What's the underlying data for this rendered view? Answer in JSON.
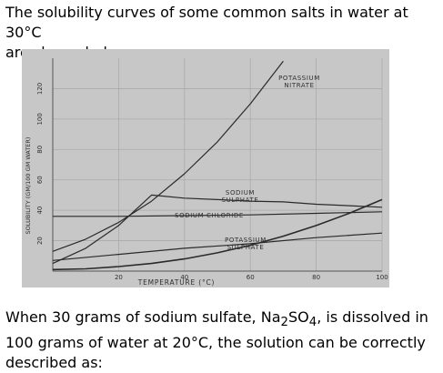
{
  "question": {
    "intro_line1": "The solubility curves of some common salts in water at 30°C",
    "intro_line2": "are shown below:",
    "prompt_pre": "When 30 grams of sodium sulfate, Na",
    "prompt_sub1": "2",
    "prompt_mid": "SO",
    "prompt_sub2": "4",
    "prompt_post": ", is dissolved in 100 grams of water at 20°C, the solution can be correctly described as:"
  },
  "chart_data": {
    "type": "line",
    "xlabel": "TEMPERATURE (°C)",
    "ylabel": "SOLUBILITY (GM/100 GM WATER)",
    "xticks": [
      "20",
      "40",
      "60",
      "80",
      "100"
    ],
    "yticks": [
      "20",
      "40",
      "60",
      "80",
      "100",
      "120"
    ],
    "xlim": [
      0,
      100
    ],
    "ylim": [
      0,
      140
    ],
    "series": [
      {
        "name": "POTASSIUM NITRATE",
        "x": [
          0,
          10,
          20,
          30,
          40,
          50,
          60,
          70
        ],
        "y": [
          13,
          21,
          32,
          46,
          64,
          85,
          110,
          138
        ]
      },
      {
        "name": "SODIUM SULPHATE",
        "x": [
          0,
          10,
          20,
          30,
          40,
          50,
          60,
          70,
          80,
          90,
          100
        ],
        "y": [
          5,
          15,
          30,
          50,
          48,
          47,
          46,
          45.5,
          44,
          43,
          42
        ]
      },
      {
        "name": "SODIUM CHLORIDE",
        "x": [
          0,
          20,
          40,
          60,
          80,
          100
        ],
        "y": [
          36,
          36,
          36.5,
          37,
          38,
          39
        ]
      },
      {
        "name": "POTASSIUM SULPHATE",
        "x": [
          0,
          20,
          40,
          60,
          80,
          100
        ],
        "y": [
          7,
          11,
          15,
          18,
          22,
          25
        ]
      },
      {
        "name": "",
        "x": [
          0,
          10,
          20,
          30,
          40,
          50,
          60,
          70,
          80,
          90,
          100
        ],
        "y": [
          1,
          1.5,
          3,
          5,
          8,
          12,
          17,
          23,
          30,
          38,
          47
        ]
      }
    ]
  },
  "colors": {
    "plot_background": "#c7c7c7",
    "grid": "#aaaaaa",
    "curve": "#2a2a2a"
  }
}
